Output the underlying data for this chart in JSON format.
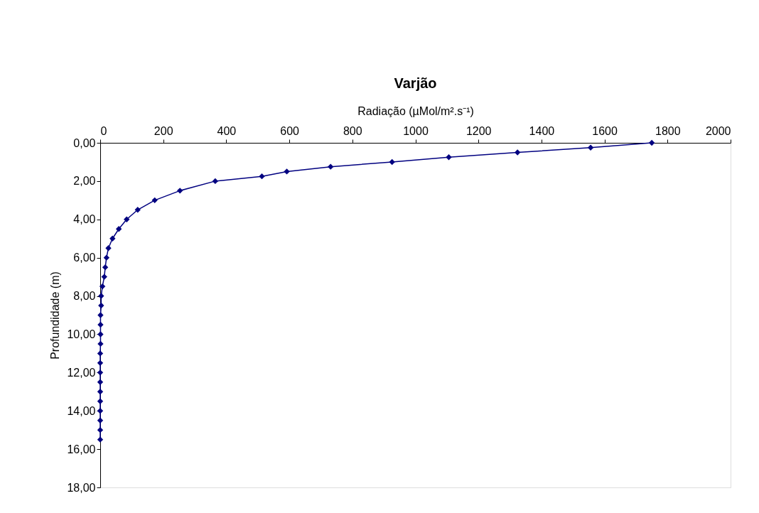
{
  "chart_data": {
    "type": "line",
    "title": "Varjão",
    "xlabel": "Radiação (µMol/m².s⁻¹)",
    "ylabel": "Profundidade (m)",
    "series": [
      {
        "color": "#000080",
        "x": [
          1750,
          1556,
          1324,
          1106,
          926,
          731,
          592,
          513,
          365,
          253,
          173,
          119,
          84,
          59,
          39,
          26,
          20,
          16,
          13,
          7,
          3,
          3,
          1,
          1,
          1,
          1,
          0,
          0,
          0,
          0,
          0,
          0,
          0,
          0,
          0,
          0
        ],
        "values": [
          0,
          0.25,
          0.5,
          0.75,
          1.0,
          1.25,
          1.5,
          1.75,
          2.0,
          2.5,
          3.0,
          3.5,
          4.0,
          4.5,
          5.0,
          5.5,
          6.0,
          6.5,
          7.0,
          7.5,
          8.0,
          8.5,
          9.0,
          9.5,
          10.0,
          10.5,
          11.0,
          11.5,
          12.0,
          12.5,
          13.0,
          13.5,
          14.0,
          14.5,
          15.0,
          15.5
        ]
      }
    ],
    "xlim": [
      0,
      2000
    ],
    "xticks": [
      0,
      200,
      400,
      600,
      800,
      1000,
      1200,
      1400,
      1600,
      1800,
      2000
    ],
    "ylim": [
      18,
      0
    ],
    "yticks": [
      {
        "value": 0,
        "label": "0,00"
      },
      {
        "value": 2,
        "label": "2,00"
      },
      {
        "value": 4,
        "label": "4,00"
      },
      {
        "value": 6,
        "label": "6,00"
      },
      {
        "value": 8,
        "label": "8,00"
      },
      {
        "value": 10,
        "label": "10,00"
      },
      {
        "value": 12,
        "label": "12,00"
      },
      {
        "value": 14,
        "label": "14,00"
      },
      {
        "value": 16,
        "label": "16,00"
      },
      {
        "value": 18,
        "label": "18,00"
      }
    ],
    "grid": false,
    "marker": "diamond",
    "line_style": "solid"
  }
}
